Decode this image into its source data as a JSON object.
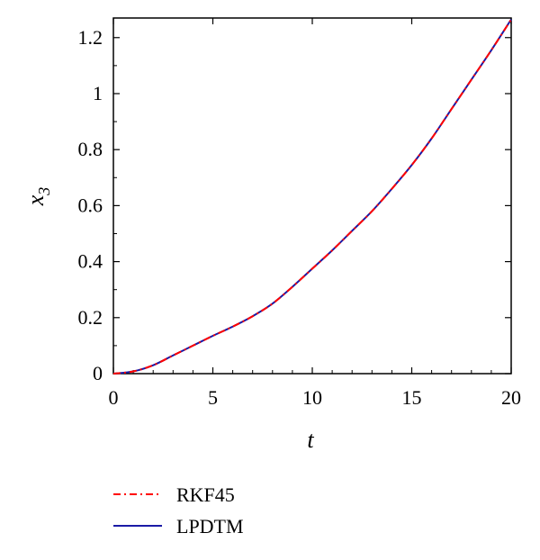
{
  "chart_data": {
    "type": "line",
    "xlabel": "t",
    "ylabel": "x",
    "ylabel_subscript": "3",
    "xlim": [
      0,
      20
    ],
    "ylim": [
      0,
      1.27
    ],
    "x_ticks": [
      0,
      5,
      10,
      15,
      20
    ],
    "x_tick_labels": [
      "0",
      "5",
      "10",
      "15",
      "20"
    ],
    "y_ticks": [
      0,
      0.2,
      0.4,
      0.6,
      0.8,
      1,
      1.2
    ],
    "y_tick_labels": [
      "0",
      "0.2",
      "0.4",
      "0.6",
      "0.8",
      "1",
      "1.2"
    ],
    "grid": false,
    "legend_position": "bottom-left",
    "series": [
      {
        "name": "RKF45",
        "color": "#ff0000",
        "style": "dash-dot",
        "x": [
          0,
          1,
          2,
          3,
          4,
          5,
          6,
          7,
          8,
          9,
          10,
          11,
          12,
          13,
          14,
          15,
          16,
          17,
          18,
          19,
          20
        ],
        "y": [
          0,
          0.008,
          0.03,
          0.065,
          0.1,
          0.135,
          0.168,
          0.205,
          0.25,
          0.31,
          0.375,
          0.44,
          0.51,
          0.58,
          0.66,
          0.745,
          0.84,
          0.945,
          1.05,
          1.155,
          1.265
        ]
      },
      {
        "name": "LPDTM",
        "color": "#1a1aa6",
        "style": "solid",
        "x": [
          0,
          1,
          2,
          3,
          4,
          5,
          6,
          7,
          8,
          9,
          10,
          11,
          12,
          13,
          14,
          15,
          16,
          17,
          18,
          19,
          20
        ],
        "y": [
          0,
          0.008,
          0.03,
          0.065,
          0.1,
          0.135,
          0.168,
          0.205,
          0.25,
          0.31,
          0.375,
          0.44,
          0.51,
          0.58,
          0.66,
          0.745,
          0.84,
          0.945,
          1.05,
          1.155,
          1.265
        ]
      }
    ]
  }
}
